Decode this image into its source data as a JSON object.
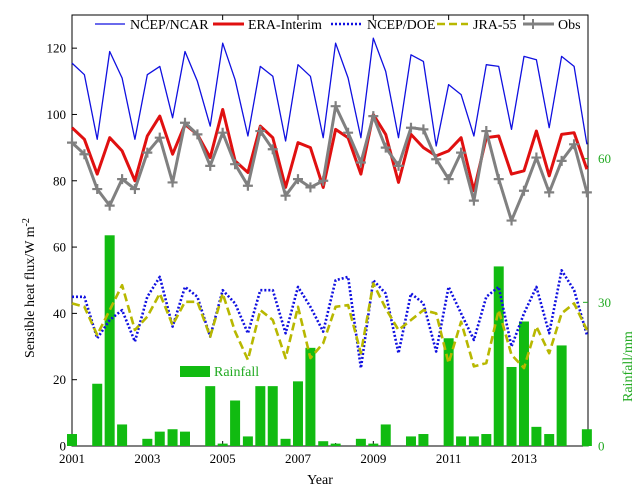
{
  "chart_data": {
    "type": "line",
    "x_label": "Year",
    "y_label": "Sensible heat flux/W m",
    "y_label_superscript": "-2",
    "y2_label": "Rainfall/mm",
    "x_range": [
      2001,
      2014.7
    ],
    "y_range": [
      0,
      130
    ],
    "y2_range": [
      0,
      90
    ],
    "x_ticks": [
      "2001",
      "2003",
      "2005",
      "2007",
      "2009",
      "2011",
      "2013"
    ],
    "y_ticks": [
      "0",
      "20",
      "40",
      "60",
      "80",
      "100",
      "120"
    ],
    "y2_ticks": [
      "0",
      "30",
      "60"
    ],
    "x": [
      2001.0,
      2001.33,
      2001.67,
      2002.0,
      2002.33,
      2002.67,
      2003.0,
      2003.33,
      2003.67,
      2004.0,
      2004.33,
      2004.67,
      2005.0,
      2005.33,
      2005.67,
      2006.0,
      2006.33,
      2006.67,
      2007.0,
      2007.33,
      2007.67,
      2008.0,
      2008.33,
      2008.67,
      2009.0,
      2009.33,
      2009.67,
      2010.0,
      2010.33,
      2010.67,
      2011.0,
      2011.33,
      2011.67,
      2012.0,
      2012.33,
      2012.67,
      2013.0,
      2013.33,
      2013.67,
      2014.0,
      2014.33,
      2014.67
    ],
    "series": [
      {
        "name": "NCEP/NCAR",
        "color": "#1010e0",
        "style": "solid",
        "values": [
          115.5,
          112,
          92.5,
          119,
          111,
          92.5,
          112,
          114.5,
          99,
          119,
          110,
          96.5,
          121.5,
          110.5,
          93.5,
          114.5,
          111.5,
          92,
          115,
          111.5,
          93,
          121.5,
          111,
          93,
          123,
          113,
          93,
          118,
          116,
          90.5,
          109,
          106,
          93.5,
          115,
          114.5,
          95.5,
          117.5,
          116.5,
          96,
          117.5,
          114.5,
          91
        ]
      },
      {
        "name": "ERA-Interim",
        "color": "#e01010",
        "style": "solid-thick",
        "values": [
          96,
          92.5,
          82,
          93,
          89,
          80,
          93.5,
          99.5,
          88,
          97,
          94,
          87,
          101.5,
          86,
          82.5,
          96.5,
          93,
          78,
          91.5,
          90,
          78,
          95.5,
          93,
          82,
          100,
          94,
          79.5,
          94,
          90,
          87.5,
          89,
          93,
          77,
          93,
          93.5,
          82,
          83,
          95,
          81.5,
          94,
          94.5,
          83.5
        ]
      },
      {
        "name": "NCEP/DOE",
        "color": "#1010e0",
        "style": "dotted",
        "values": [
          45,
          45,
          32.5,
          38,
          41,
          31.5,
          45,
          51,
          36,
          48,
          45,
          33,
          47,
          43,
          34,
          47,
          47,
          34,
          48,
          42,
          34.5,
          50,
          51,
          23.5,
          50,
          46,
          28,
          46,
          43,
          28.5,
          48,
          40,
          32,
          45,
          48,
          30,
          40,
          48,
          34,
          53,
          47,
          33.5
        ]
      },
      {
        "name": "JRA-55",
        "color": "#b8b800",
        "style": "dashed",
        "values": [
          43,
          42,
          33.5,
          41,
          48.5,
          35,
          39,
          46,
          36.5,
          43.5,
          43.5,
          33,
          46,
          34.5,
          26,
          41,
          38,
          26.5,
          42,
          26.5,
          31,
          42,
          42.5,
          28,
          49,
          41.5,
          35,
          38,
          41,
          40,
          25,
          37.5,
          24,
          25,
          41,
          27.5,
          23.5,
          36,
          28,
          40,
          43,
          35
        ]
      },
      {
        "name": "Obs",
        "color": "#808080",
        "style": "solid-plus",
        "values": [
          91.5,
          88,
          77.5,
          72.5,
          80.5,
          77.5,
          88.5,
          93,
          79.5,
          97.5,
          94,
          84.5,
          94.5,
          85,
          78.5,
          95,
          89.5,
          75.5,
          80.5,
          78,
          80,
          102.5,
          94.5,
          85.5,
          99.5,
          90,
          84.5,
          96,
          95.5,
          86.5,
          80.5,
          88.5,
          74,
          95,
          80.5,
          68,
          77,
          87,
          76.5,
          86,
          91,
          76.5
        ]
      }
    ],
    "rainfall": {
      "name": "Rainfall",
      "color": "#11bb11",
      "bars": [
        {
          "x": 2001.0,
          "value": 2.5
        },
        {
          "x": 2001.67,
          "value": 13
        },
        {
          "x": 2002.0,
          "value": 44
        },
        {
          "x": 2002.33,
          "value": 4.5
        },
        {
          "x": 2003.0,
          "value": 1.5
        },
        {
          "x": 2003.33,
          "value": 3
        },
        {
          "x": 2003.67,
          "value": 3.5
        },
        {
          "x": 2004.0,
          "value": 3
        },
        {
          "x": 2004.67,
          "value": 12.5
        },
        {
          "x": 2005.0,
          "value": 0.5
        },
        {
          "x": 2005.33,
          "value": 9.5
        },
        {
          "x": 2005.67,
          "value": 2
        },
        {
          "x": 2006.0,
          "value": 12.5
        },
        {
          "x": 2006.33,
          "value": 12.5
        },
        {
          "x": 2006.67,
          "value": 1.5
        },
        {
          "x": 2007.0,
          "value": 13.5
        },
        {
          "x": 2007.33,
          "value": 20.5
        },
        {
          "x": 2007.67,
          "value": 1
        },
        {
          "x": 2008.0,
          "value": 0.5
        },
        {
          "x": 2008.67,
          "value": 1.5
        },
        {
          "x": 2009.0,
          "value": 0.5
        },
        {
          "x": 2009.33,
          "value": 4.5
        },
        {
          "x": 2010.0,
          "value": 2
        },
        {
          "x": 2010.33,
          "value": 2.5
        },
        {
          "x": 2011.0,
          "value": 22.5
        },
        {
          "x": 2011.33,
          "value": 2
        },
        {
          "x": 2011.67,
          "value": 2
        },
        {
          "x": 2012.0,
          "value": 2.5
        },
        {
          "x": 2012.33,
          "value": 37.5
        },
        {
          "x": 2012.67,
          "value": 16.5
        },
        {
          "x": 2013.0,
          "value": 26
        },
        {
          "x": 2013.33,
          "value": 4
        },
        {
          "x": 2013.67,
          "value": 2.5
        },
        {
          "x": 2014.0,
          "value": 21
        },
        {
          "x": 2014.67,
          "value": 3.5
        }
      ]
    },
    "legend": {
      "position": "top",
      "items": [
        "NCEP/NCAR",
        "ERA-Interim",
        "NCEP/DOE",
        "JRA-55",
        "Obs"
      ],
      "rain_label": "Rainfall"
    }
  }
}
